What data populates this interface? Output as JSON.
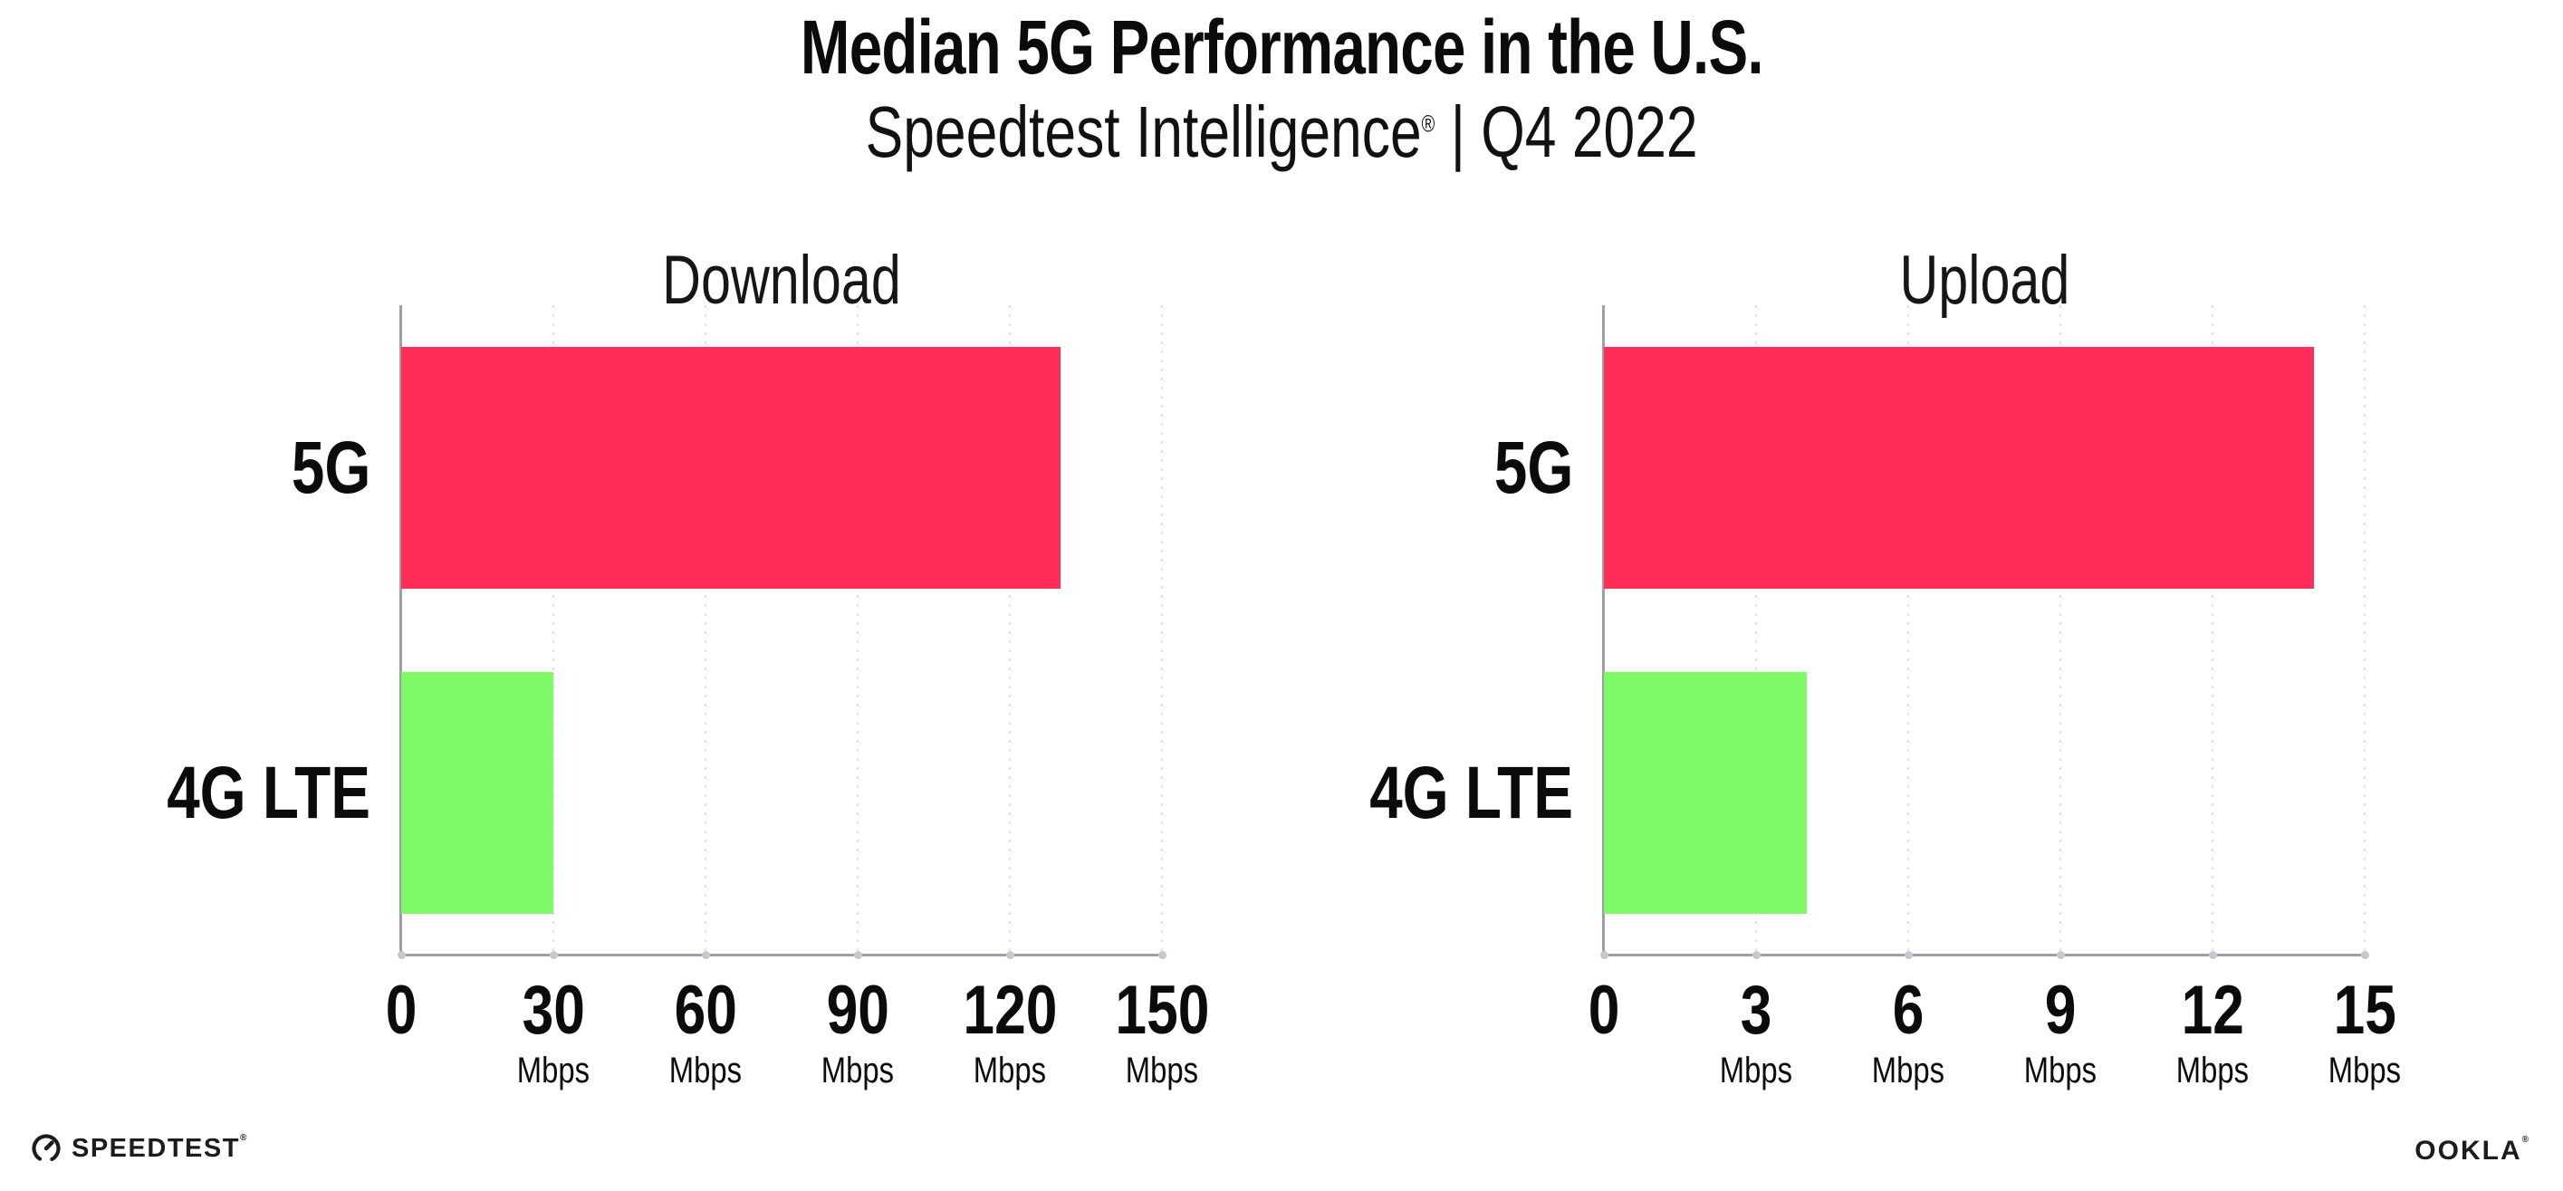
{
  "header": {
    "title": "Median 5G Performance in the U.S.",
    "subtitle_name": "Speedtest Intelligence",
    "subtitle_reg": "®",
    "subtitle_rest": " | Q4 2022"
  },
  "colors": {
    "bar_5g": "#FF2D58",
    "bar_4g_lte": "#7DFA65",
    "axis": "#9E9EA6",
    "grid_dot": "#DEDEE8",
    "tick_dot": "#C7C7D2",
    "text": "#0B0B0B"
  },
  "chart_data": [
    {
      "type": "bar",
      "orientation": "horizontal",
      "title": "Download",
      "categories": [
        "5G",
        "4G LTE"
      ],
      "values": [
        130,
        30
      ],
      "unit": "Mbps",
      "xlim": [
        0,
        150
      ],
      "ticks": [
        0,
        30,
        60,
        90,
        120,
        150
      ],
      "grid": "dotted-vertical",
      "legend": "none",
      "bar_colors": [
        "#FF2D58",
        "#7DFA65"
      ]
    },
    {
      "type": "bar",
      "orientation": "horizontal",
      "title": "Upload",
      "categories": [
        "5G",
        "4G LTE"
      ],
      "values": [
        14,
        4
      ],
      "unit": "Mbps",
      "xlim": [
        0,
        15
      ],
      "ticks": [
        0,
        3,
        6,
        9,
        12,
        15
      ],
      "grid": "dotted-vertical",
      "legend": "none",
      "bar_colors": [
        "#FF2D58",
        "#7DFA65"
      ]
    }
  ],
  "footer": {
    "speedtest_label": "SPEEDTEST",
    "speedtest_reg": "®",
    "speedtest_icon": "speedometer-gauge-icon",
    "ookla_label": "OOKLA",
    "ookla_reg": "®"
  }
}
